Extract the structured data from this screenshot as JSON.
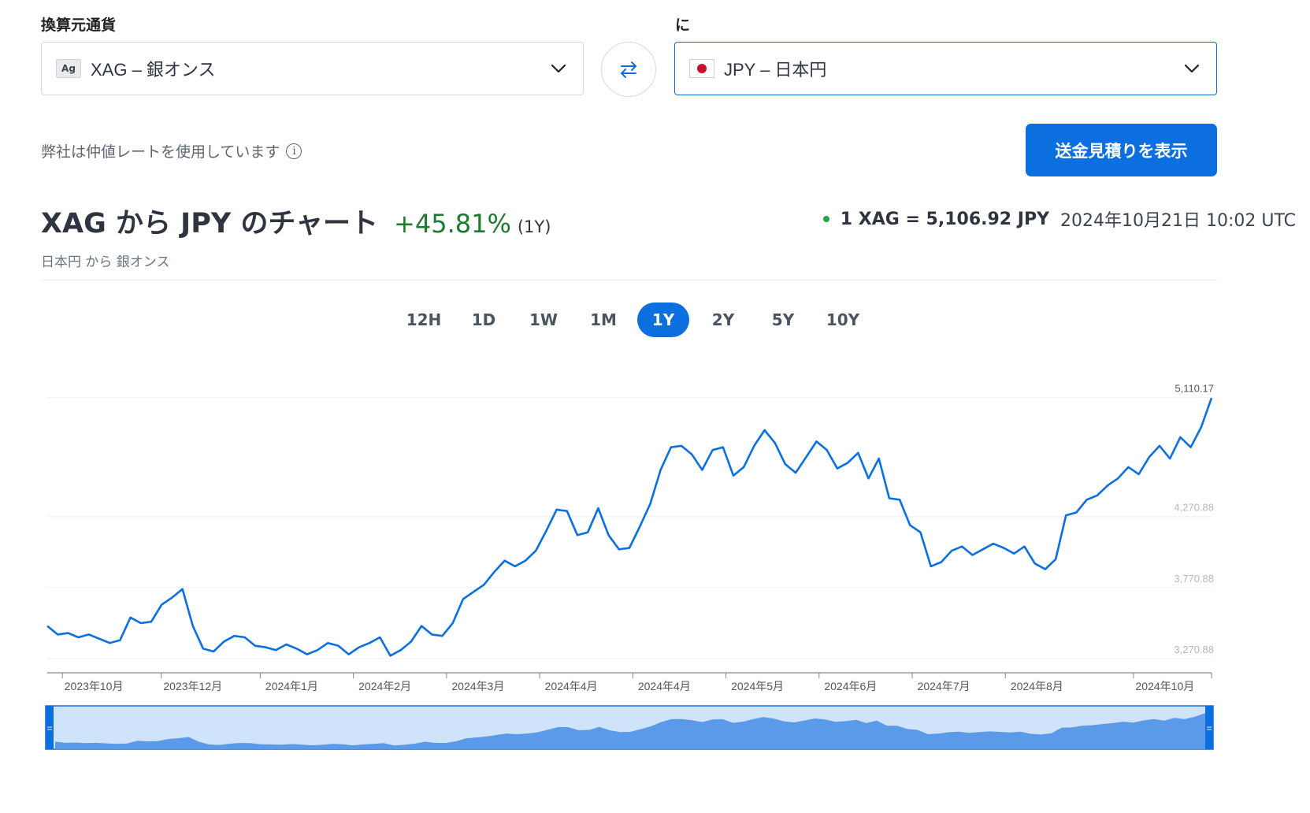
{
  "from": {
    "label": "換算元通貨",
    "badge": "Ag",
    "currency": "XAG – 銀オンス"
  },
  "to": {
    "label": "に",
    "currency": "JPY – 日本円"
  },
  "midrate_note": "弊社は仲値レートを使用しています",
  "quote_button": "送金見積りを表示",
  "title": "XAG から JPY のチャート",
  "change_pct": "+45.81%",
  "change_period": "(1Y)",
  "subtitle": "日本円 から 銀オンス",
  "rate": {
    "pair": "1 XAG = 5,106.92 JPY",
    "timestamp": "2024年10月21日 10:02 UTC"
  },
  "tabs": [
    "12H",
    "1D",
    "1W",
    "1M",
    "1Y",
    "2Y",
    "5Y",
    "10Y"
  ],
  "active_tab": "1Y",
  "colors": {
    "accent": "#0c6fe0",
    "positive": "#1e7a2e",
    "line": "#0c6fe0",
    "navigator_fill": "#5a9ae8"
  },
  "chart_data": {
    "type": "line",
    "ylabel": "",
    "xlabel": "",
    "ylim": [
      3170,
      5330
    ],
    "y_ticks": [
      "5,110.17",
      "4,270.88",
      "3,770.88",
      "3,270.88"
    ],
    "x_ticks": [
      "2023年10月",
      "2023年12月",
      "2024年1月",
      "2024年2月",
      "2024年3月",
      "2024年4月",
      "2024年4月",
      "2024年5月",
      "2024年6月",
      "2024年7月",
      "2024年8月",
      "2024年10月"
    ],
    "series": [
      {
        "values": [
          3500,
          3440,
          3450,
          3420,
          3440,
          3410,
          3380,
          3400,
          3560,
          3520,
          3530,
          3650,
          3700,
          3760,
          3500,
          3340,
          3320,
          3390,
          3430,
          3420,
          3360,
          3350,
          3330,
          3370,
          3340,
          3300,
          3330,
          3380,
          3360,
          3300,
          3350,
          3380,
          3420,
          3290,
          3330,
          3390,
          3500,
          3440,
          3430,
          3520,
          3690,
          3740,
          3790,
          3880,
          3960,
          3920,
          3960,
          4030,
          4170,
          4320,
          4310,
          4140,
          4160,
          4330,
          4140,
          4040,
          4050,
          4200,
          4360,
          4600,
          4760,
          4770,
          4710,
          4600,
          4740,
          4760,
          4560,
          4620,
          4770,
          4880,
          4790,
          4640,
          4580,
          4690,
          4800,
          4740,
          4610,
          4650,
          4720,
          4540,
          4680,
          4400,
          4390,
          4210,
          4160,
          3920,
          3950,
          4030,
          4060,
          4000,
          4040,
          4080,
          4050,
          4010,
          4060,
          3940,
          3900,
          3970,
          4280,
          4300,
          4390,
          4420,
          4490,
          4540,
          4620,
          4570,
          4690,
          4770,
          4680,
          4830,
          4760,
          4900,
          5106.92
        ]
      }
    ]
  },
  "navigator": {
    "handle_symbol": "="
  }
}
